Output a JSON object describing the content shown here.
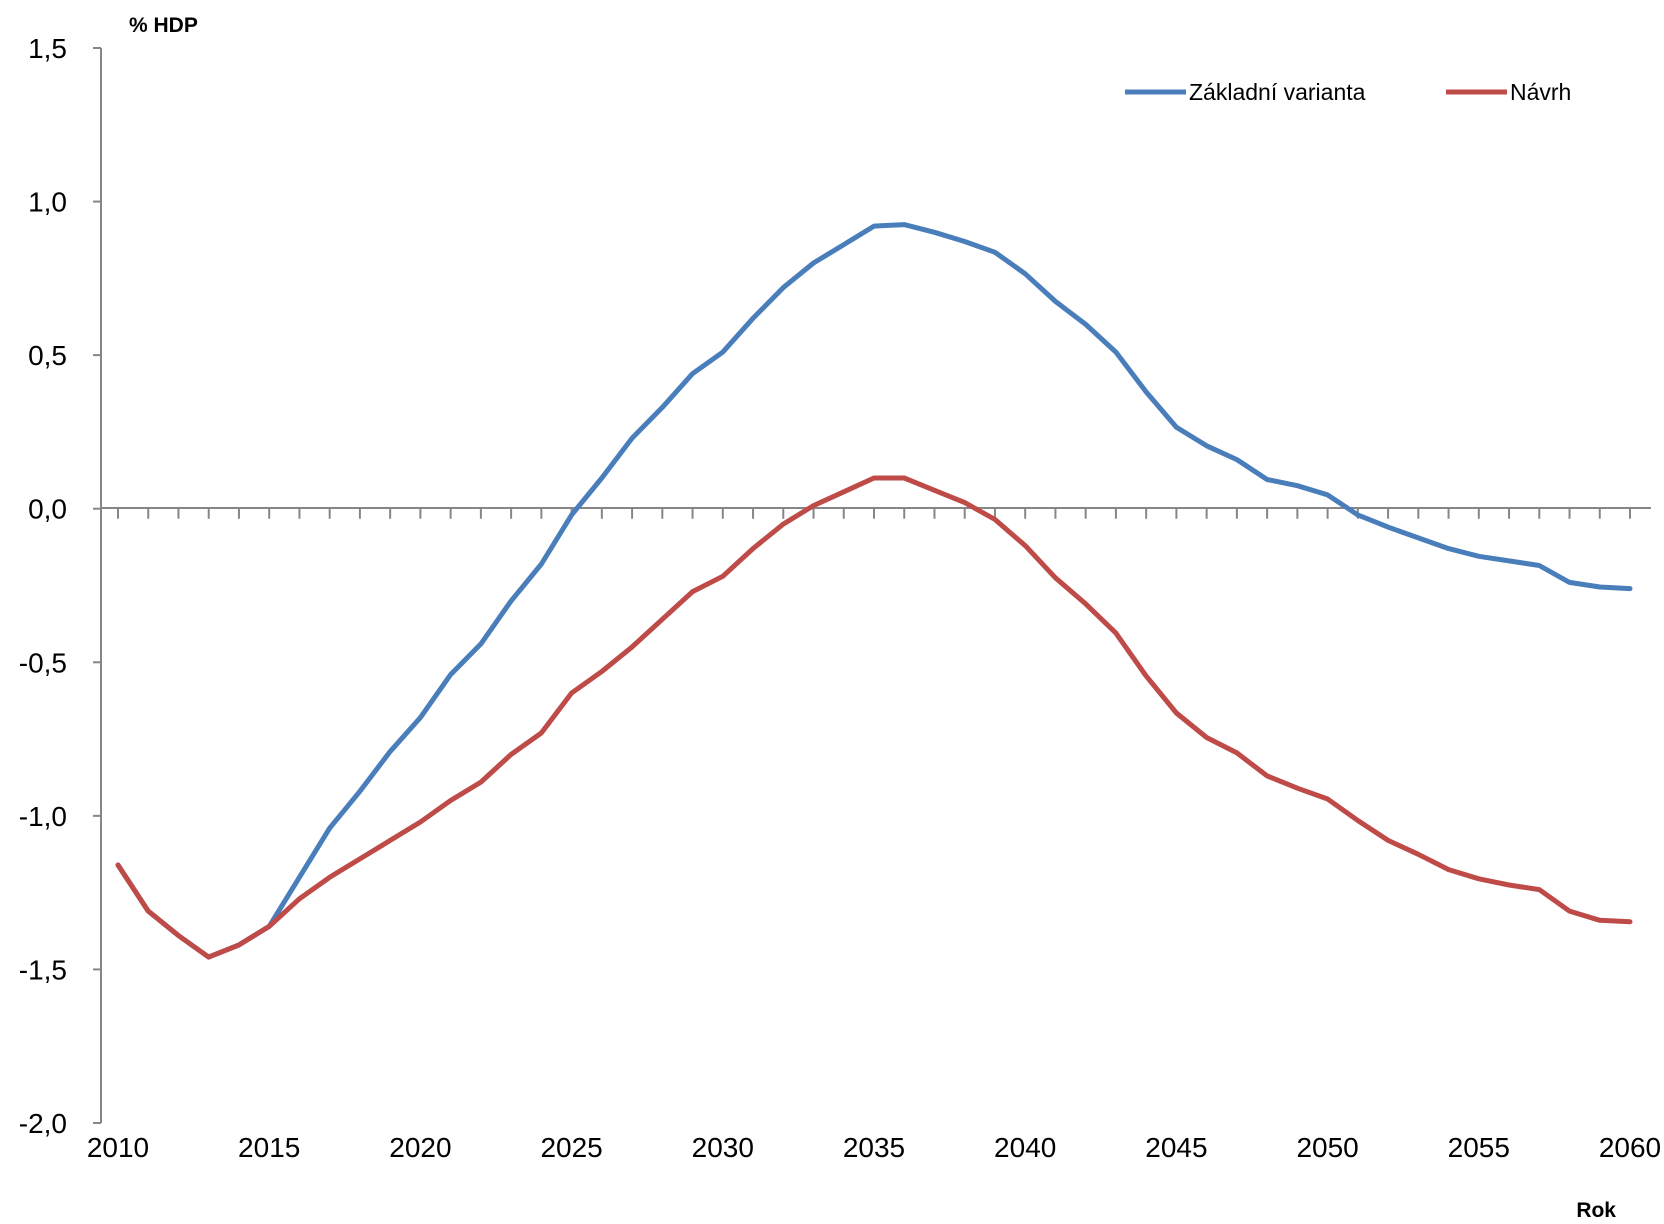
{
  "chart_data": {
    "type": "line",
    "ylabel": "% HDP",
    "xlabel": "Rok",
    "ylim": [
      -2.0,
      1.5
    ],
    "yticks": [
      "1,5",
      "1,0",
      "0,5",
      "0,0",
      "-0,5",
      "-1,0",
      "-1,5",
      "-2,0"
    ],
    "ytick_values": [
      1.5,
      1.0,
      0.5,
      0.0,
      -0.5,
      -1.0,
      -1.5,
      -2.0
    ],
    "xlim": [
      2010,
      2060
    ],
    "xticks": [
      "2010",
      "2015",
      "2020",
      "2025",
      "2030",
      "2035",
      "2040",
      "2045",
      "2050",
      "2055",
      "2060"
    ],
    "xtick_values": [
      2010,
      2015,
      2020,
      2025,
      2030,
      2035,
      2040,
      2045,
      2050,
      2055,
      2060
    ],
    "x": [
      2010,
      2011,
      2012,
      2013,
      2014,
      2015,
      2016,
      2017,
      2018,
      2019,
      2020,
      2021,
      2022,
      2023,
      2024,
      2025,
      2026,
      2027,
      2028,
      2029,
      2030,
      2031,
      2032,
      2033,
      2034,
      2035,
      2036,
      2037,
      2038,
      2039,
      2040,
      2041,
      2042,
      2043,
      2044,
      2045,
      2046,
      2047,
      2048,
      2049,
      2050,
      2051,
      2052,
      2053,
      2054,
      2055,
      2056,
      2057,
      2058,
      2059,
      2060
    ],
    "legend_position": "top-right",
    "grid": false,
    "series": [
      {
        "name": "Základní varianta",
        "color": "#4a7ebb",
        "values": [
          -1.16,
          -1.31,
          -1.39,
          -1.46,
          -1.42,
          -1.36,
          -1.2,
          -1.04,
          -0.92,
          -0.79,
          -0.68,
          -0.54,
          -0.44,
          -0.3,
          -0.18,
          -0.02,
          0.1,
          0.23,
          0.33,
          0.44,
          0.51,
          0.62,
          0.72,
          0.8,
          0.86,
          0.92,
          0.925,
          0.9,
          0.87,
          0.835,
          0.765,
          0.675,
          0.6,
          0.51,
          0.38,
          0.265,
          0.205,
          0.16,
          0.095,
          0.075,
          0.045,
          -0.02,
          -0.06,
          -0.095,
          -0.13,
          -0.155,
          -0.17,
          -0.185,
          -0.24,
          -0.255,
          -0.26
        ]
      },
      {
        "name": "Návrh",
        "color": "#be4b48",
        "values": [
          -1.16,
          -1.31,
          -1.39,
          -1.46,
          -1.42,
          -1.36,
          -1.27,
          -1.2,
          -1.14,
          -1.08,
          -1.02,
          -0.95,
          -0.89,
          -0.8,
          -0.73,
          -0.6,
          -0.53,
          -0.45,
          -0.36,
          -0.27,
          -0.22,
          -0.13,
          -0.05,
          0.01,
          0.055,
          0.1,
          0.1,
          0.06,
          0.02,
          -0.035,
          -0.12,
          -0.225,
          -0.31,
          -0.405,
          -0.545,
          -0.665,
          -0.745,
          -0.795,
          -0.87,
          -0.91,
          -0.945,
          -1.015,
          -1.08,
          -1.125,
          -1.175,
          -1.205,
          -1.225,
          -1.24,
          -1.31,
          -1.34,
          -1.345
        ]
      }
    ]
  }
}
